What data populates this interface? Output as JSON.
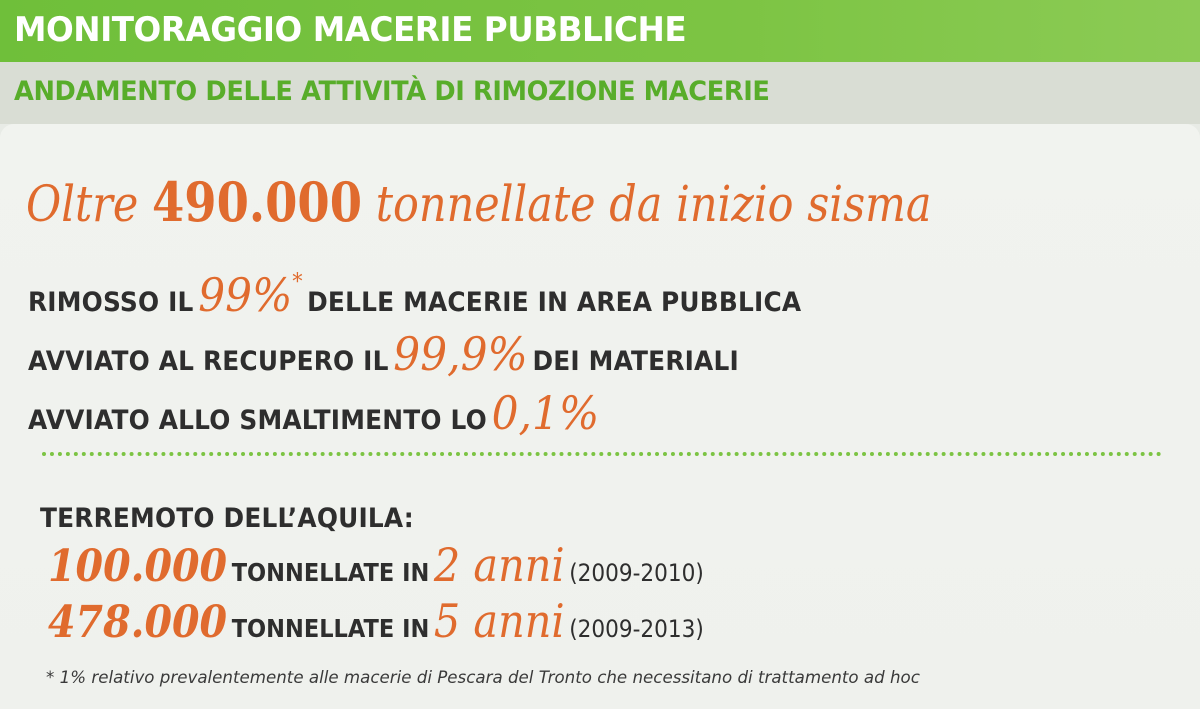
{
  "header": {
    "title": "MONITORAGGIO MACERIE PUBBLICHE"
  },
  "subheader": {
    "title": "ANDAMENTO DELLE ATTIVITÀ DI RIMOZIONE MACERIE"
  },
  "headline": {
    "prefix": "Oltre",
    "value": "490.000",
    "suffix": "tonnellate da inizio sisma"
  },
  "stats": [
    {
      "before": "RIMOSSO IL",
      "value": "99%",
      "mark": "*",
      "after": "DELLE MACERIE IN AREA PUBBLICA"
    },
    {
      "before": "AVVIATO AL RECUPERO IL",
      "value": "99,9%",
      "after": "DEI MATERIALI"
    },
    {
      "before": "AVVIATO ALLO SMALTIMENTO LO",
      "value": "0,1%"
    }
  ],
  "aquila": {
    "title": "TERREMOTO DELL’AQUILA:",
    "rows": [
      {
        "amount": "100.000",
        "label": "TONNELLATE IN",
        "years": "2 anni",
        "range": "(2009-2010)"
      },
      {
        "amount": "478.000",
        "label": "TONNELLATE IN",
        "years": "5 anni",
        "range": "(2009-2013)"
      }
    ]
  },
  "footnote": "* 1% relativo prevalentemente alle macerie di Pescara del Tronto che necessitano di trattamento ad hoc",
  "colors": {
    "green": "#7cc443",
    "orange": "#e06b2e",
    "text": "#2e2e2e"
  }
}
